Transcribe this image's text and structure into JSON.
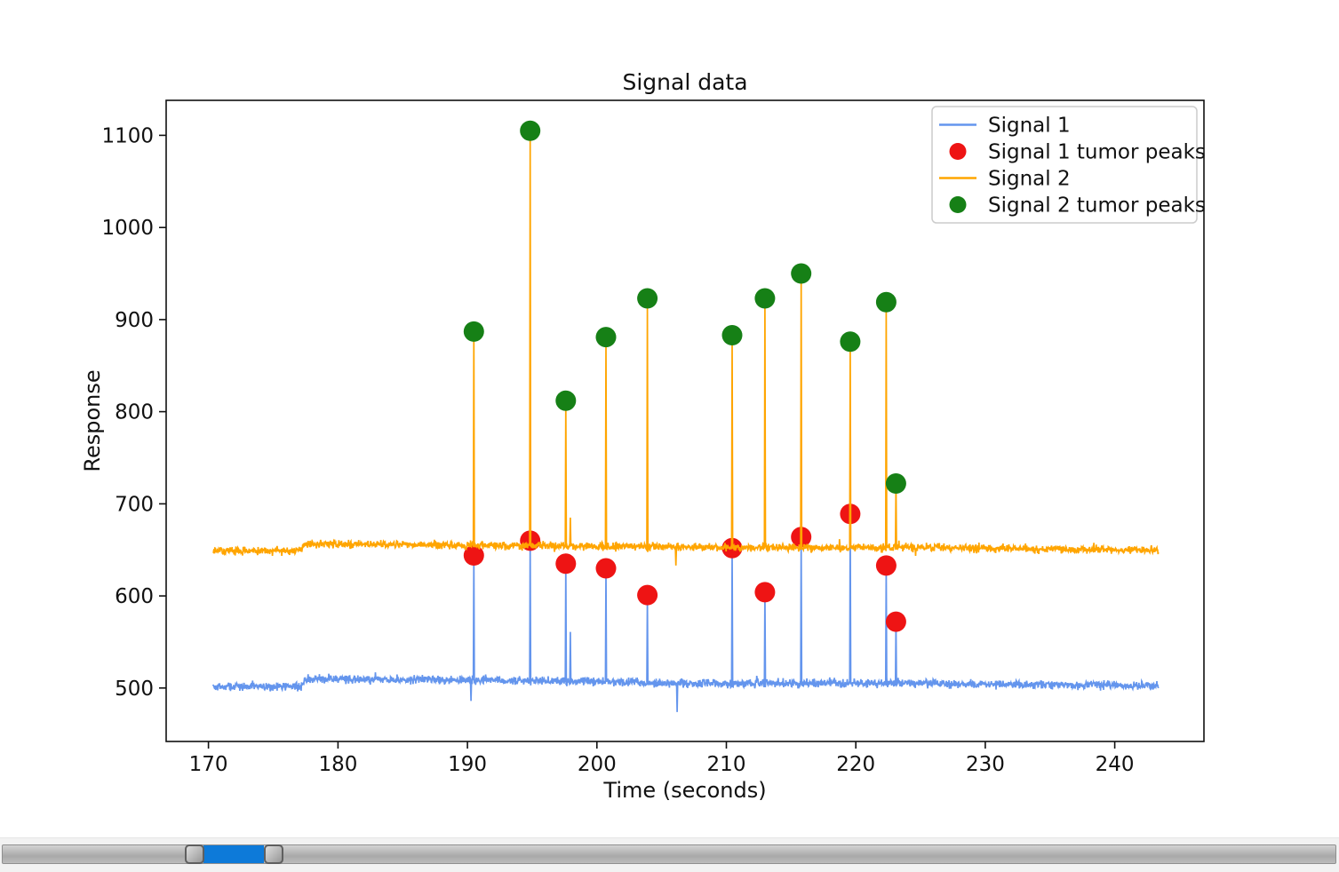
{
  "chart_data": {
    "type": "line",
    "title": "Signal data",
    "xlabel": "Time (seconds)",
    "ylabel": "Response",
    "xlim": [
      166.73,
      246.89
    ],
    "ylim": [
      442,
      1138
    ],
    "xticks": [
      170,
      180,
      190,
      200,
      210,
      220,
      230,
      240
    ],
    "yticks": [
      500,
      600,
      700,
      800,
      900,
      1000,
      1100
    ],
    "grid": false,
    "legend": {
      "position": "upper right",
      "entries": [
        {
          "label": "Signal 1",
          "marker": "line",
          "color": "#6495ED"
        },
        {
          "label": "Signal 1 tumor peaks",
          "marker": "dot",
          "color": "#ee1414"
        },
        {
          "label": "Signal 2",
          "marker": "line",
          "color": "#ffa500"
        },
        {
          "label": "Signal 2 tumor peaks",
          "marker": "dot",
          "color": "#168016"
        }
      ]
    },
    "series": [
      {
        "name": "Signal 1",
        "kind": "noisy-line",
        "color": "#6495ED",
        "t_range": [
          170.35,
          243.4
        ],
        "baseline": [
          [
            170.35,
            501.5
          ],
          [
            177.1,
            501.5
          ],
          [
            177.5,
            510
          ],
          [
            190,
            508.5
          ],
          [
            200,
            507
          ],
          [
            207,
            505
          ],
          [
            220,
            505.5
          ],
          [
            243.4,
            502.5
          ]
        ],
        "noise_sigma": 2.2,
        "spike_t": [
          190.5,
          194.85,
          197.6,
          200.7,
          203.9,
          210.45,
          212.98,
          215.78,
          219.57,
          222.35,
          223.1
        ],
        "spike_v": [
          644,
          660,
          635,
          630,
          601,
          652,
          604,
          664,
          689,
          633,
          572
        ],
        "extra_spikes": [
          [
            190.28,
            486
          ],
          [
            197.95,
            561
          ],
          [
            206.2,
            474
          ]
        ]
      },
      {
        "name": "Signal 1 tumor peaks",
        "kind": "scatter",
        "color": "#ee1414",
        "x": [
          190.5,
          194.85,
          197.6,
          200.7,
          203.9,
          210.45,
          212.98,
          215.78,
          219.57,
          222.35,
          223.1
        ],
        "y": [
          644,
          660,
          635,
          630,
          601,
          652,
          604,
          664,
          689,
          633,
          572
        ]
      },
      {
        "name": "Signal 2",
        "kind": "noisy-line",
        "color": "#ffa500",
        "t_range": [
          170.35,
          243.4
        ],
        "baseline": [
          [
            170.35,
            649
          ],
          [
            177.1,
            649.5
          ],
          [
            177.5,
            656.5
          ],
          [
            195,
            654.5
          ],
          [
            207,
            653
          ],
          [
            226,
            652.5
          ],
          [
            243.4,
            649.5
          ]
        ],
        "noise_sigma": 2.1,
        "spike_t": [
          190.5,
          194.85,
          197.6,
          200.7,
          203.9,
          210.45,
          212.98,
          215.78,
          219.57,
          222.35,
          223.1
        ],
        "spike_v": [
          887,
          1105,
          812,
          881,
          923,
          883,
          923,
          950,
          876,
          919,
          722
        ],
        "extra_spikes": [
          [
            197.95,
            685
          ],
          [
            206.1,
            633
          ]
        ]
      },
      {
        "name": "Signal 2 tumor peaks",
        "kind": "scatter",
        "color": "#168016",
        "x": [
          190.5,
          194.85,
          197.6,
          200.7,
          203.9,
          210.45,
          212.98,
          215.78,
          219.57,
          222.35,
          223.1
        ],
        "y": [
          887,
          1105,
          812,
          881,
          923,
          883,
          923,
          950,
          876,
          919,
          722
        ]
      }
    ]
  },
  "scrollbar": {
    "kind": "range-slider",
    "selected_range_pct": [
      15.19,
      19.71
    ],
    "fill_color": "#0d7ad9",
    "track_color": "#b4b4b4",
    "handle_color": "#bdbdbd"
  }
}
